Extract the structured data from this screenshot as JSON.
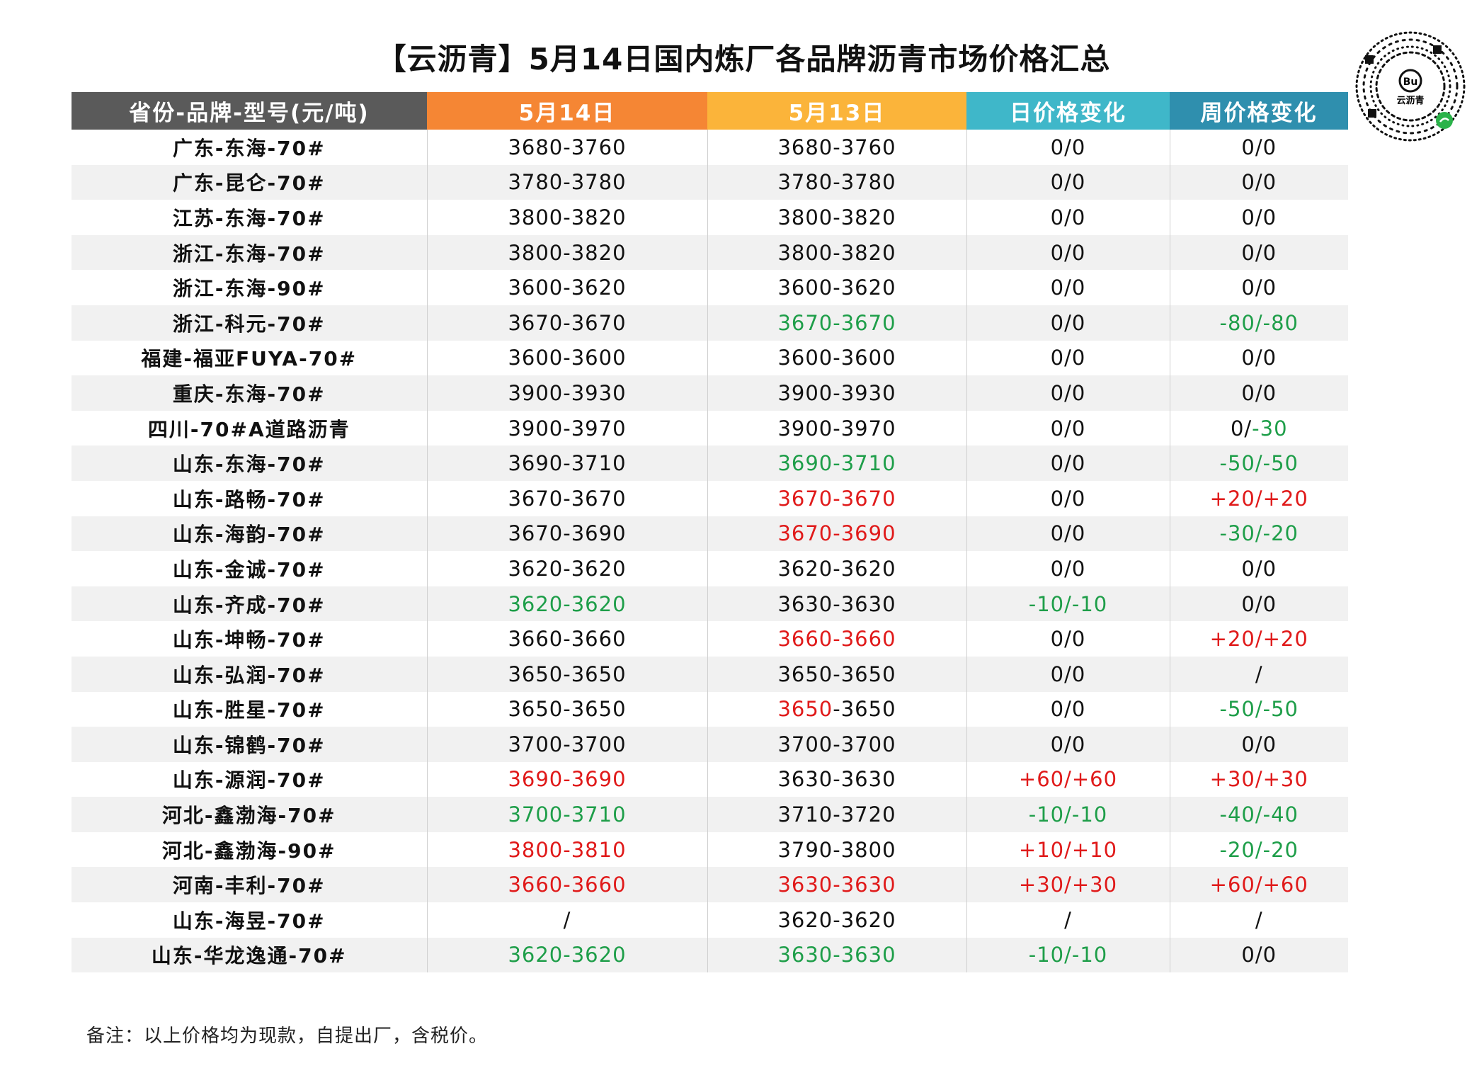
{
  "title": "【云沥青】5月14日国内炼厂各品牌沥青市场价格汇总",
  "logo_text": "云沥青",
  "headers": [
    "省份-品牌-型号(元/吨)",
    "5月14日",
    "5月13日",
    "日价格变化",
    "周价格变化"
  ],
  "colors": {
    "green": "#1e9e49",
    "red": "#e01a1a",
    "header_gray": "#5a5a5a",
    "header_orange": "#f58634",
    "header_yellow": "#fbb43a",
    "header_teal": "#3fb7c9",
    "header_blue": "#2f8fae"
  },
  "rows": [
    {
      "name": "广东-东海-70#",
      "may14": "3680-3760",
      "may13": "3680-3760",
      "day": "0/0",
      "week": "0/0"
    },
    {
      "name": "广东-昆仑-70#",
      "may14": "3780-3780",
      "may13": "3780-3780",
      "day": "0/0",
      "week": "0/0"
    },
    {
      "name": "江苏-东海-70#",
      "may14": "3800-3820",
      "may13": "3800-3820",
      "day": "0/0",
      "week": "0/0"
    },
    {
      "name": "浙江-东海-70#",
      "may14": "3800-3820",
      "may13": "3800-3820",
      "day": "0/0",
      "week": "0/0"
    },
    {
      "name": "浙江-东海-90#",
      "may14": "3600-3620",
      "may13": "3600-3620",
      "day": "0/0",
      "week": "0/0"
    },
    {
      "name": "浙江-科元-70#",
      "may14": "3670-3670",
      "may13": "3670-3670",
      "day": "0/0",
      "week": "-80/-80"
    },
    {
      "name": "福建-福亚FUYA-70#",
      "may14": "3600-3600",
      "may13": "3600-3600",
      "day": "0/0",
      "week": "0/0"
    },
    {
      "name": "重庆-东海-70#",
      "may14": "3900-3930",
      "may13": "3900-3930",
      "day": "0/0",
      "week": "0/0"
    },
    {
      "name": "四川-70#A道路沥青",
      "may14": "3900-3970",
      "may13": "3900-3970",
      "day": "0/0",
      "week_a": "0/",
      "week_b": "-30"
    },
    {
      "name": "山东-东海-70#",
      "may14": "3690-3710",
      "may13": "3690-3710",
      "day": "0/0",
      "week": "-50/-50"
    },
    {
      "name": "山东-路畅-70#",
      "may14": "3670-3670",
      "may13": "3670-3670",
      "day": "0/0",
      "week": "+20/+20"
    },
    {
      "name": "山东-海韵-70#",
      "may14": "3670-3690",
      "may13": "3670-3690",
      "day": "0/0",
      "week": "-30/-20"
    },
    {
      "name": "山东-金诚-70#",
      "may14": "3620-3620",
      "may13": "3620-3620",
      "day": "0/0",
      "week": "0/0"
    },
    {
      "name": "山东-齐成-70#",
      "may14": "3620-3620",
      "may13": "3630-3630",
      "day": "-10/-10",
      "week": "0/0"
    },
    {
      "name": "山东-坤畅-70#",
      "may14": "3660-3660",
      "may13": "3660-3660",
      "day": "0/0",
      "week": "+20/+20"
    },
    {
      "name": "山东-弘润-70#",
      "may14": "3650-3650",
      "may13": "3650-3650",
      "day": "0/0",
      "week": "/"
    },
    {
      "name": "山东-胜星-70#",
      "may14": "3650-3650",
      "may13_a": "3650",
      "may13_b": "-3650",
      "day": "0/0",
      "week": "-50/-50"
    },
    {
      "name": "山东-锦鹤-70#",
      "may14": "3700-3700",
      "may13": "3700-3700",
      "day": "0/0",
      "week": "0/0"
    },
    {
      "name": "山东-源润-70#",
      "may14": "3690-3690",
      "may13": "3630-3630",
      "day": "+60/+60",
      "week": "+30/+30"
    },
    {
      "name": "河北-鑫渤海-70#",
      "may14": "3700-3710",
      "may13": "3710-3720",
      "day": "-10/-10",
      "week": "-40/-40"
    },
    {
      "name": "河北-鑫渤海-90#",
      "may14": "3800-3810",
      "may13": "3790-3800",
      "day": "+10/+10",
      "week": "-20/-20"
    },
    {
      "name": "河南-丰利-70#",
      "may14": "3660-3660",
      "may13": "3630-3630",
      "day": "+30/+30",
      "week": "+60/+60"
    },
    {
      "name": "山东-海昱-70#",
      "may14": "/",
      "may13": "3620-3620",
      "day": "/",
      "week": "/"
    },
    {
      "name": "山东-华龙逸通-70#",
      "may14": "3620-3620",
      "may13": "3630-3630",
      "day": "-10/-10",
      "week": "0/0"
    }
  ],
  "note": "备注：以上价格均为现款，自提出厂，含税价。"
}
